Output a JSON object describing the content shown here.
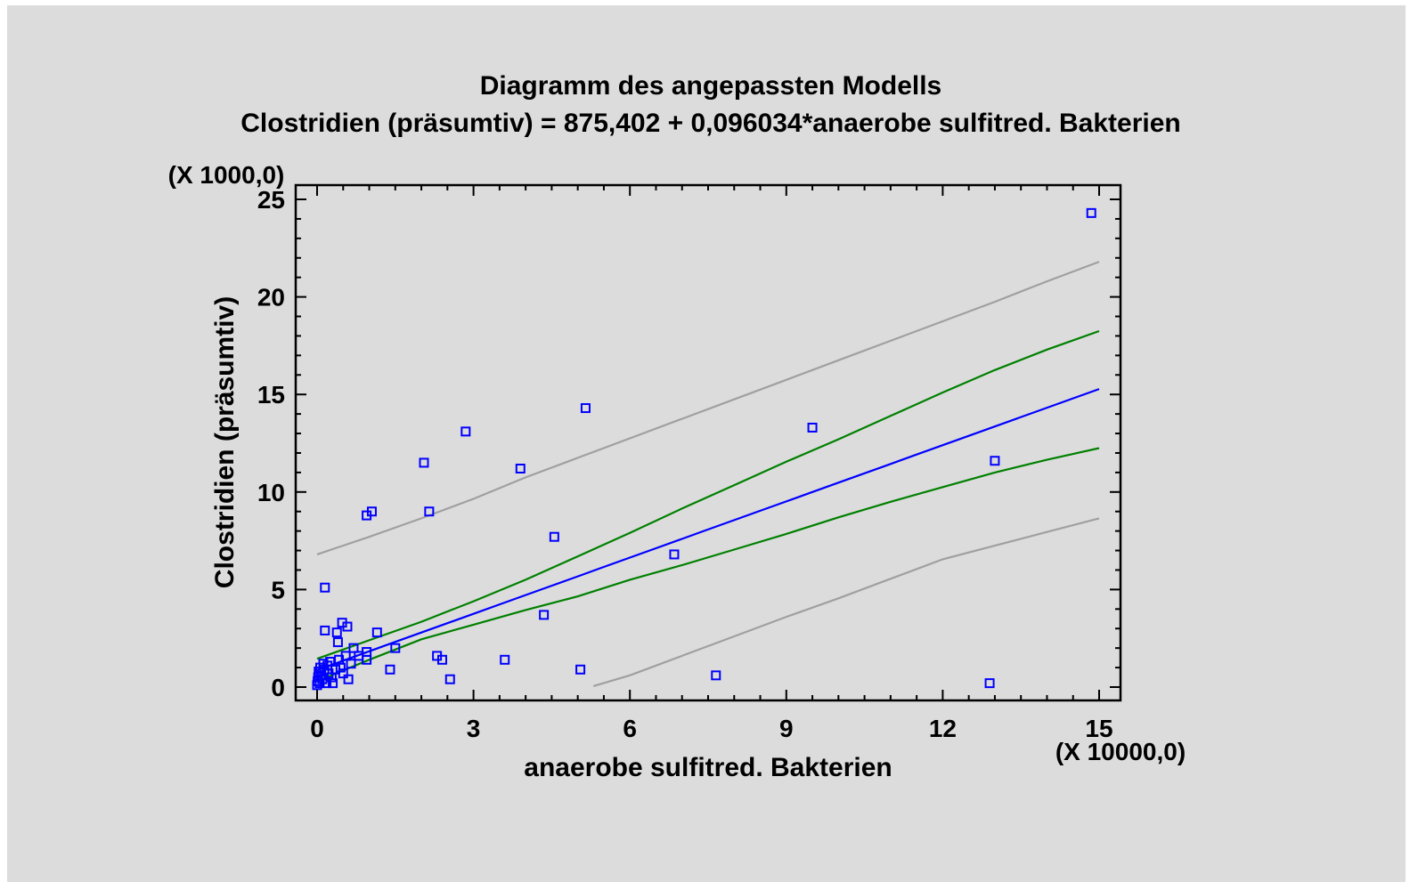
{
  "chart_data": {
    "type": "scatter",
    "title": "Diagramm des angepassten Modells",
    "subtitle": "Clostridien (präsumtiv) = 875,402 + 0,096034*anaerobe sulfitred. Bakterien",
    "xlabel": "anaerobe sulfitred. Bakterien",
    "ylabel": "Clostridien (präsumtiv)",
    "x_multiplier_label": "(X 10000,0)",
    "y_multiplier_label": "(X 1000,0)",
    "xlim": [
      0,
      15
    ],
    "ylim": [
      0,
      25
    ],
    "x_ticks": [
      "0",
      "3",
      "6",
      "9",
      "12",
      "15"
    ],
    "y_ticks": [
      "0",
      "5",
      "10",
      "15",
      "20",
      "25"
    ],
    "grid": false,
    "legend": "none",
    "colors": {
      "points": "#0000ff",
      "fit_line": "#0000ff",
      "confidence_limits": "#008000",
      "prediction_limits": "#a0a0a0",
      "background": "#dcdcdc"
    },
    "points": [
      {
        "x": 0.0,
        "y": 0.1
      },
      {
        "x": 0.01,
        "y": 0.3
      },
      {
        "x": 0.02,
        "y": 0.5
      },
      {
        "x": 0.03,
        "y": 0.8
      },
      {
        "x": 0.05,
        "y": 0.2
      },
      {
        "x": 0.06,
        "y": 1.0
      },
      {
        "x": 0.08,
        "y": 0.6
      },
      {
        "x": 0.1,
        "y": 0.4
      },
      {
        "x": 0.12,
        "y": 1.2
      },
      {
        "x": 0.14,
        "y": 0.9
      },
      {
        "x": 0.15,
        "y": 5.1
      },
      {
        "x": 0.15,
        "y": 2.9
      },
      {
        "x": 0.18,
        "y": 0.2
      },
      {
        "x": 0.2,
        "y": 1.1
      },
      {
        "x": 0.22,
        "y": 0.7
      },
      {
        "x": 0.25,
        "y": 1.3
      },
      {
        "x": 0.28,
        "y": 0.5
      },
      {
        "x": 0.3,
        "y": 0.2
      },
      {
        "x": 0.35,
        "y": 0.9
      },
      {
        "x": 0.38,
        "y": 2.8
      },
      {
        "x": 0.4,
        "y": 2.3
      },
      {
        "x": 0.42,
        "y": 1.4
      },
      {
        "x": 0.45,
        "y": 1.0
      },
      {
        "x": 0.48,
        "y": 3.3
      },
      {
        "x": 0.5,
        "y": 0.7
      },
      {
        "x": 0.55,
        "y": 1.6
      },
      {
        "x": 0.58,
        "y": 3.1
      },
      {
        "x": 0.6,
        "y": 0.4
      },
      {
        "x": 0.65,
        "y": 1.2
      },
      {
        "x": 0.7,
        "y": 2.0
      },
      {
        "x": 0.8,
        "y": 1.6
      },
      {
        "x": 0.95,
        "y": 1.8
      },
      {
        "x": 0.95,
        "y": 1.4
      },
      {
        "x": 0.95,
        "y": 8.8
      },
      {
        "x": 1.05,
        "y": 9.0
      },
      {
        "x": 1.15,
        "y": 2.8
      },
      {
        "x": 1.4,
        "y": 0.9
      },
      {
        "x": 1.5,
        "y": 2.0
      },
      {
        "x": 2.05,
        "y": 11.5
      },
      {
        "x": 2.15,
        "y": 9.0
      },
      {
        "x": 2.3,
        "y": 1.6
      },
      {
        "x": 2.4,
        "y": 1.4
      },
      {
        "x": 2.55,
        "y": 0.4
      },
      {
        "x": 2.85,
        "y": 13.1
      },
      {
        "x": 3.6,
        "y": 1.4
      },
      {
        "x": 3.9,
        "y": 11.2
      },
      {
        "x": 4.35,
        "y": 3.7
      },
      {
        "x": 4.55,
        "y": 7.7
      },
      {
        "x": 5.05,
        "y": 0.9
      },
      {
        "x": 5.15,
        "y": 14.3
      },
      {
        "x": 6.85,
        "y": 6.8
      },
      {
        "x": 7.65,
        "y": 0.6
      },
      {
        "x": 9.5,
        "y": 13.3
      },
      {
        "x": 12.9,
        "y": 0.2
      },
      {
        "x": 13.0,
        "y": 11.6
      },
      {
        "x": 14.85,
        "y": 24.3
      }
    ],
    "fit_line": {
      "name": "",
      "intercept": 0.875402,
      "slope": 0.96034
    },
    "confidence_limits": {
      "upper": [
        [
          0,
          1.45
        ],
        [
          1,
          2.4
        ],
        [
          2,
          3.35
        ],
        [
          3,
          4.4
        ],
        [
          4,
          5.5
        ],
        [
          5,
          6.7
        ],
        [
          6,
          7.9
        ],
        [
          7,
          9.15
        ],
        [
          8,
          10.35
        ],
        [
          9,
          11.55
        ],
        [
          10,
          12.7
        ],
        [
          11,
          13.9
        ],
        [
          12,
          15.1
        ],
        [
          13,
          16.25
        ],
        [
          14,
          17.3
        ],
        [
          15,
          18.25
        ]
      ],
      "lower": [
        [
          0,
          0.3
        ],
        [
          1,
          1.4
        ],
        [
          2,
          2.45
        ],
        [
          3,
          3.2
        ],
        [
          4,
          3.95
        ],
        [
          5,
          4.65
        ],
        [
          6,
          5.5
        ],
        [
          7,
          6.25
        ],
        [
          8,
          7.05
        ],
        [
          9,
          7.85
        ],
        [
          10,
          8.7
        ],
        [
          11,
          9.5
        ],
        [
          12,
          10.25
        ],
        [
          13,
          11.0
        ],
        [
          14,
          11.65
        ],
        [
          15,
          12.25
        ]
      ]
    },
    "prediction_limits": {
      "upper": [
        [
          0,
          6.8
        ],
        [
          1,
          7.7
        ],
        [
          2,
          8.65
        ],
        [
          3,
          9.65
        ],
        [
          4,
          10.75
        ],
        [
          5,
          11.75
        ],
        [
          6,
          12.75
        ],
        [
          7,
          13.75
        ],
        [
          8,
          14.75
        ],
        [
          9,
          15.75
        ],
        [
          10,
          16.75
        ],
        [
          11,
          17.75
        ],
        [
          12,
          18.75
        ],
        [
          13,
          19.75
        ],
        [
          14,
          20.8
        ],
        [
          15,
          21.8
        ]
      ],
      "lower": [
        [
          5.3,
          0.05
        ],
        [
          6,
          0.6
        ],
        [
          7,
          1.6
        ],
        [
          8,
          2.6
        ],
        [
          9,
          3.6
        ],
        [
          10,
          4.55
        ],
        [
          11,
          5.55
        ],
        [
          12,
          6.55
        ],
        [
          13,
          7.25
        ],
        [
          14,
          7.95
        ],
        [
          15,
          8.65
        ]
      ]
    }
  }
}
